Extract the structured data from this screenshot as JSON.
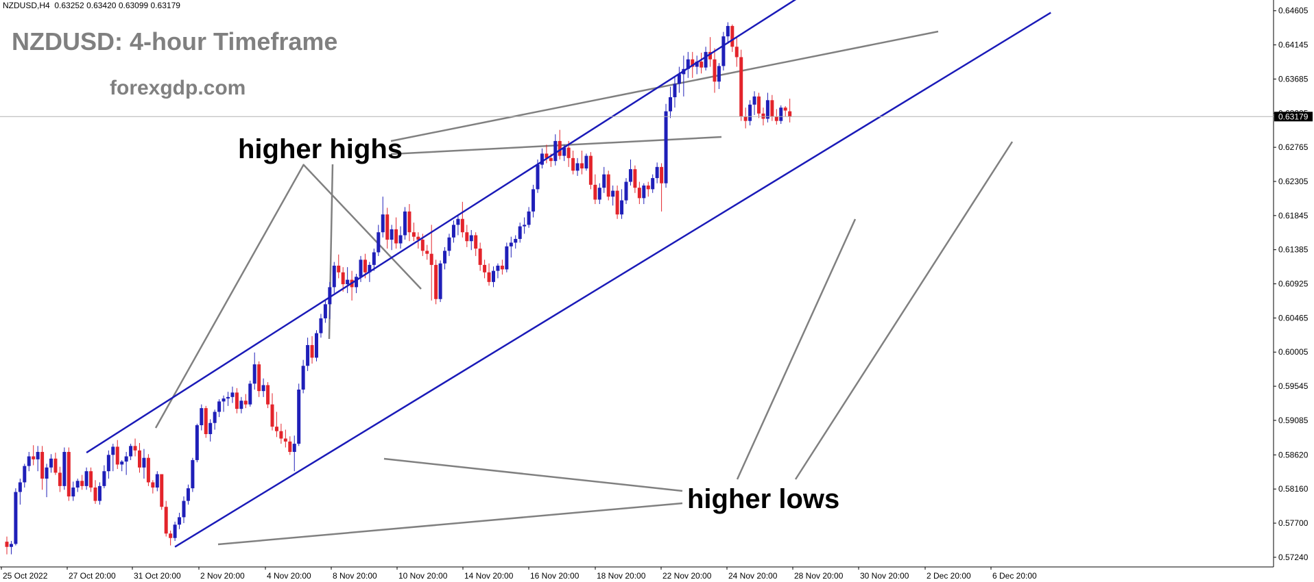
{
  "header": {
    "symbol": "NZDUSD,H4",
    "open": "0.63252",
    "high": "0.63420",
    "low": "0.63099",
    "close": "0.63179"
  },
  "annotations": {
    "title": "NZDUSD: 4-hour Timeframe",
    "website": "forexgdp.com",
    "higher_highs": "higher highs",
    "higher_lows": "higher lows"
  },
  "colors": {
    "bull": "#1f1fb8",
    "bear": "#e3242b",
    "channel": "#1a1ab8",
    "pointer": "#808080"
  },
  "chart_data": {
    "type": "candlestick",
    "symbol": "NZDUSD",
    "timeframe": "H4",
    "current_price": 0.63179,
    "y_ticks": [
      "0.64605",
      "0.64145",
      "0.63685",
      "0.63225",
      "0.62765",
      "0.62305",
      "0.61845",
      "0.61385",
      "0.60925",
      "0.60465",
      "0.60005",
      "0.59545",
      "0.59085",
      "0.58620",
      "0.58160",
      "0.57700",
      "0.57240"
    ],
    "x_ticks": [
      "25 Oct 2022",
      "27 Oct 20:00",
      "31 Oct 20:00",
      "2 Nov 20:00",
      "4 Nov 20:00",
      "8 Nov 20:00",
      "10 Nov 20:00",
      "14 Nov 20:00",
      "16 Nov 20:00",
      "18 Nov 20:00",
      "22 Nov 20:00",
      "24 Nov 20:00",
      "28 Nov 20:00",
      "30 Nov 20:00",
      "2 Dec 20:00",
      "6 Dec 20:00"
    ],
    "ylim": [
      0.5711,
      0.6475
    ],
    "candle_spacing": 6.45,
    "candle_width": 5,
    "candles": [
      [
        0.5745,
        0.5752,
        0.5728,
        0.5738
      ],
      [
        0.5738,
        0.5746,
        0.5728,
        0.5742
      ],
      [
        0.5742,
        0.5817,
        0.574,
        0.5812
      ],
      [
        0.5812,
        0.583,
        0.5795,
        0.5825
      ],
      [
        0.5825,
        0.585,
        0.5818,
        0.5847
      ],
      [
        0.5847,
        0.5866,
        0.584,
        0.586
      ],
      [
        0.586,
        0.5875,
        0.5848,
        0.5856
      ],
      [
        0.5856,
        0.5874,
        0.584,
        0.5866
      ],
      [
        0.5866,
        0.5874,
        0.5815,
        0.583
      ],
      [
        0.583,
        0.585,
        0.5805,
        0.5845
      ],
      [
        0.5845,
        0.5863,
        0.5838,
        0.5857
      ],
      [
        0.5857,
        0.5865,
        0.5835,
        0.5838
      ],
      [
        0.5838,
        0.5846,
        0.5812,
        0.582
      ],
      [
        0.582,
        0.5872,
        0.5815,
        0.5866
      ],
      [
        0.5866,
        0.5872,
        0.58,
        0.5806
      ],
      [
        0.5806,
        0.5826,
        0.58,
        0.5818
      ],
      [
        0.5818,
        0.583,
        0.5812,
        0.5827
      ],
      [
        0.5827,
        0.5835,
        0.5815,
        0.582
      ],
      [
        0.582,
        0.5845,
        0.5815,
        0.584
      ],
      [
        0.584,
        0.5845,
        0.5812,
        0.5818
      ],
      [
        0.5818,
        0.5828,
        0.5796,
        0.58
      ],
      [
        0.58,
        0.5825,
        0.5795,
        0.582
      ],
      [
        0.582,
        0.5848,
        0.5817,
        0.584
      ],
      [
        0.584,
        0.5868,
        0.583,
        0.5862
      ],
      [
        0.5862,
        0.5877,
        0.584,
        0.5873
      ],
      [
        0.5873,
        0.5882,
        0.5843,
        0.5849
      ],
      [
        0.5849,
        0.5855,
        0.584,
        0.5853
      ],
      [
        0.5853,
        0.5866,
        0.5835,
        0.586
      ],
      [
        0.586,
        0.5877,
        0.5855,
        0.5874
      ],
      [
        0.5874,
        0.5884,
        0.586,
        0.5868
      ],
      [
        0.5868,
        0.5878,
        0.5838,
        0.5845
      ],
      [
        0.5845,
        0.587,
        0.583,
        0.5858
      ],
      [
        0.5858,
        0.5863,
        0.582,
        0.5825
      ],
      [
        0.5825,
        0.5828,
        0.581,
        0.5818
      ],
      [
        0.5818,
        0.584,
        0.5813,
        0.5836
      ],
      [
        0.5836,
        0.5836,
        0.5788,
        0.5792
      ],
      [
        0.5792,
        0.58,
        0.5752,
        0.5756
      ],
      [
        0.5756,
        0.576,
        0.574,
        0.575
      ],
      [
        0.575,
        0.5772,
        0.5746,
        0.5768
      ],
      [
        0.5768,
        0.5784,
        0.5762,
        0.5778
      ],
      [
        0.5778,
        0.5806,
        0.577,
        0.58
      ],
      [
        0.58,
        0.5822,
        0.5795,
        0.5817
      ],
      [
        0.5817,
        0.5858,
        0.5812,
        0.5855
      ],
      [
        0.5855,
        0.5904,
        0.5852,
        0.5902
      ],
      [
        0.5902,
        0.593,
        0.5895,
        0.5925
      ],
      [
        0.5925,
        0.5928,
        0.5885,
        0.589
      ],
      [
        0.589,
        0.591,
        0.588,
        0.5905
      ],
      [
        0.5905,
        0.5923,
        0.5896,
        0.592
      ],
      [
        0.592,
        0.5937,
        0.5913,
        0.5934
      ],
      [
        0.5934,
        0.5942,
        0.592,
        0.5938
      ],
      [
        0.5938,
        0.5947,
        0.5928,
        0.594
      ],
      [
        0.594,
        0.5954,
        0.5932,
        0.5946
      ],
      [
        0.5946,
        0.5952,
        0.5918,
        0.5924
      ],
      [
        0.5924,
        0.594,
        0.5918,
        0.5935
      ],
      [
        0.5935,
        0.5944,
        0.5925,
        0.593
      ],
      [
        0.593,
        0.5962,
        0.5927,
        0.5958
      ],
      [
        0.5958,
        0.6,
        0.595,
        0.5984
      ],
      [
        0.5984,
        0.5988,
        0.594,
        0.5948
      ],
      [
        0.5948,
        0.5965,
        0.594,
        0.5956
      ],
      [
        0.5956,
        0.596,
        0.5925,
        0.593
      ],
      [
        0.593,
        0.5945,
        0.5895,
        0.59
      ],
      [
        0.59,
        0.592,
        0.5886,
        0.5894
      ],
      [
        0.5894,
        0.5904,
        0.5877,
        0.5884
      ],
      [
        0.5884,
        0.5896,
        0.5872,
        0.588
      ],
      [
        0.588,
        0.5887,
        0.5862,
        0.5866
      ],
      [
        0.5866,
        0.5888,
        0.584,
        0.5877
      ],
      [
        0.5877,
        0.5958,
        0.5874,
        0.595
      ],
      [
        0.595,
        0.599,
        0.5945,
        0.5982
      ],
      [
        0.5982,
        0.602,
        0.5975,
        0.601
      ],
      [
        0.601,
        0.6022,
        0.5985,
        0.5993
      ],
      [
        0.5993,
        0.603,
        0.5988,
        0.6026
      ],
      [
        0.6026,
        0.6052,
        0.602,
        0.6046
      ],
      [
        0.6046,
        0.607,
        0.604,
        0.6065
      ],
      [
        0.6065,
        0.6095,
        0.6045,
        0.6088
      ],
      [
        0.6088,
        0.6122,
        0.608,
        0.6117
      ],
      [
        0.6117,
        0.6132,
        0.61,
        0.6108
      ],
      [
        0.6108,
        0.6115,
        0.6082,
        0.6092
      ],
      [
        0.6092,
        0.6115,
        0.608,
        0.6098
      ],
      [
        0.6098,
        0.611,
        0.607,
        0.6088
      ],
      [
        0.6088,
        0.6106,
        0.608,
        0.6102
      ],
      [
        0.6102,
        0.613,
        0.6095,
        0.6125
      ],
      [
        0.6125,
        0.6133,
        0.61,
        0.6108
      ],
      [
        0.6108,
        0.6122,
        0.6095,
        0.6118
      ],
      [
        0.6118,
        0.614,
        0.611,
        0.6135
      ],
      [
        0.6135,
        0.6172,
        0.613,
        0.6162
      ],
      [
        0.6162,
        0.621,
        0.6155,
        0.6186
      ],
      [
        0.6186,
        0.6195,
        0.614,
        0.6152
      ],
      [
        0.6152,
        0.6172,
        0.6138,
        0.6166
      ],
      [
        0.6166,
        0.6182,
        0.614,
        0.6147
      ],
      [
        0.6147,
        0.617,
        0.614,
        0.6158
      ],
      [
        0.6158,
        0.6196,
        0.6152,
        0.619
      ],
      [
        0.619,
        0.62,
        0.615,
        0.6162
      ],
      [
        0.6162,
        0.6175,
        0.615,
        0.6156
      ],
      [
        0.6156,
        0.6162,
        0.614,
        0.6152
      ],
      [
        0.6152,
        0.616,
        0.613,
        0.6137
      ],
      [
        0.6137,
        0.6145,
        0.6125,
        0.6133
      ],
      [
        0.6133,
        0.6172,
        0.607,
        0.6118
      ],
      [
        0.6118,
        0.6125,
        0.6065,
        0.6072
      ],
      [
        0.6072,
        0.6124,
        0.6068,
        0.612
      ],
      [
        0.612,
        0.6142,
        0.6112,
        0.6137
      ],
      [
        0.6137,
        0.616,
        0.613,
        0.6155
      ],
      [
        0.6155,
        0.6178,
        0.6148,
        0.6172
      ],
      [
        0.6172,
        0.6185,
        0.6158,
        0.618
      ],
      [
        0.618,
        0.6203,
        0.6155,
        0.6162
      ],
      [
        0.6162,
        0.6172,
        0.6142,
        0.615
      ],
      [
        0.615,
        0.6165,
        0.6138,
        0.6158
      ],
      [
        0.6158,
        0.6162,
        0.613,
        0.614
      ],
      [
        0.614,
        0.6148,
        0.611,
        0.6118
      ],
      [
        0.6118,
        0.6125,
        0.61,
        0.6108
      ],
      [
        0.6108,
        0.612,
        0.609,
        0.6095
      ],
      [
        0.6095,
        0.6116,
        0.6088,
        0.611
      ],
      [
        0.611,
        0.612,
        0.61,
        0.6117
      ],
      [
        0.6117,
        0.6125,
        0.6105,
        0.6112
      ],
      [
        0.6112,
        0.6148,
        0.6108,
        0.6143
      ],
      [
        0.6143,
        0.6156,
        0.6128,
        0.6148
      ],
      [
        0.6148,
        0.6158,
        0.614,
        0.6153
      ],
      [
        0.6153,
        0.6175,
        0.6148,
        0.617
      ],
      [
        0.617,
        0.6182,
        0.616,
        0.6172
      ],
      [
        0.6172,
        0.6196,
        0.6168,
        0.619
      ],
      [
        0.619,
        0.6226,
        0.6182,
        0.622
      ],
      [
        0.622,
        0.626,
        0.6215,
        0.6253
      ],
      [
        0.6253,
        0.6275,
        0.6248,
        0.6268
      ],
      [
        0.6268,
        0.628,
        0.6255,
        0.6262
      ],
      [
        0.6262,
        0.6268,
        0.625,
        0.6258
      ],
      [
        0.6258,
        0.6294,
        0.6252,
        0.6285
      ],
      [
        0.6285,
        0.63,
        0.626,
        0.6265
      ],
      [
        0.6265,
        0.628,
        0.6258,
        0.6276
      ],
      [
        0.6276,
        0.6285,
        0.625,
        0.6262
      ],
      [
        0.6262,
        0.6272,
        0.624,
        0.6245
      ],
      [
        0.6245,
        0.6262,
        0.6238,
        0.6255
      ],
      [
        0.6255,
        0.6272,
        0.624,
        0.6248
      ],
      [
        0.6248,
        0.6268,
        0.6245,
        0.6265
      ],
      [
        0.6265,
        0.627,
        0.622,
        0.6226
      ],
      [
        0.6226,
        0.624,
        0.62,
        0.6206
      ],
      [
        0.6206,
        0.6228,
        0.62,
        0.6222
      ],
      [
        0.6222,
        0.625,
        0.6215,
        0.624
      ],
      [
        0.624,
        0.6245,
        0.6205,
        0.621
      ],
      [
        0.621,
        0.6225,
        0.6198,
        0.6218
      ],
      [
        0.6218,
        0.6225,
        0.618,
        0.6186
      ],
      [
        0.6186,
        0.622,
        0.618,
        0.6205
      ],
      [
        0.6205,
        0.6235,
        0.62,
        0.623
      ],
      [
        0.623,
        0.626,
        0.6225,
        0.6247
      ],
      [
        0.6247,
        0.6252,
        0.6215,
        0.6222
      ],
      [
        0.6222,
        0.623,
        0.62,
        0.6208
      ],
      [
        0.6208,
        0.6228,
        0.62,
        0.6225
      ],
      [
        0.6225,
        0.623,
        0.621,
        0.622
      ],
      [
        0.622,
        0.624,
        0.6215,
        0.6235
      ],
      [
        0.6235,
        0.6256,
        0.6228,
        0.625
      ],
      [
        0.625,
        0.6255,
        0.619,
        0.6228
      ],
      [
        0.6228,
        0.6335,
        0.6222,
        0.6325
      ],
      [
        0.6325,
        0.6358,
        0.6316,
        0.6344
      ],
      [
        0.6344,
        0.6372,
        0.633,
        0.6362
      ],
      [
        0.6362,
        0.6385,
        0.635,
        0.6375
      ],
      [
        0.6375,
        0.64,
        0.6345,
        0.6382
      ],
      [
        0.6382,
        0.6405,
        0.637,
        0.6395
      ],
      [
        0.6395,
        0.6405,
        0.637,
        0.6385
      ],
      [
        0.6385,
        0.64,
        0.6375,
        0.6392
      ],
      [
        0.6392,
        0.6404,
        0.6376,
        0.6384
      ],
      [
        0.6384,
        0.6412,
        0.638,
        0.6405
      ],
      [
        0.6405,
        0.6425,
        0.6385,
        0.6395
      ],
      [
        0.6395,
        0.641,
        0.635,
        0.6365
      ],
      [
        0.6365,
        0.639,
        0.6355,
        0.6386
      ],
      [
        0.6386,
        0.6432,
        0.638,
        0.6426
      ],
      [
        0.6426,
        0.6445,
        0.6416,
        0.644
      ],
      [
        0.644,
        0.6442,
        0.6405,
        0.6412
      ],
      [
        0.6412,
        0.6425,
        0.6385,
        0.6398
      ],
      [
        0.6398,
        0.6408,
        0.6312,
        0.6318
      ],
      [
        0.6318,
        0.633,
        0.6302,
        0.6312
      ],
      [
        0.6312,
        0.634,
        0.6306,
        0.6334
      ],
      [
        0.6334,
        0.6352,
        0.632,
        0.6345
      ],
      [
        0.6345,
        0.635,
        0.6316,
        0.6322
      ],
      [
        0.6322,
        0.633,
        0.6306,
        0.6315
      ],
      [
        0.6315,
        0.635,
        0.631,
        0.634
      ],
      [
        0.634,
        0.6347,
        0.6312,
        0.6318
      ],
      [
        0.6318,
        0.6328,
        0.6307,
        0.6312
      ],
      [
        0.6312,
        0.6333,
        0.6308,
        0.633
      ],
      [
        0.633,
        0.6332,
        0.6318,
        0.6326
      ],
      [
        0.6325,
        0.6342,
        0.631,
        0.6318
      ]
    ],
    "trendlines": [
      {
        "name": "upper-channel-line",
        "from": [
          18,
          0.5865
        ],
        "to": [
          181,
          0.6486
        ]
      },
      {
        "name": "lower-channel-line",
        "from": [
          38,
          0.5738
        ],
        "to": [
          236,
          0.6458
        ]
      }
    ]
  }
}
